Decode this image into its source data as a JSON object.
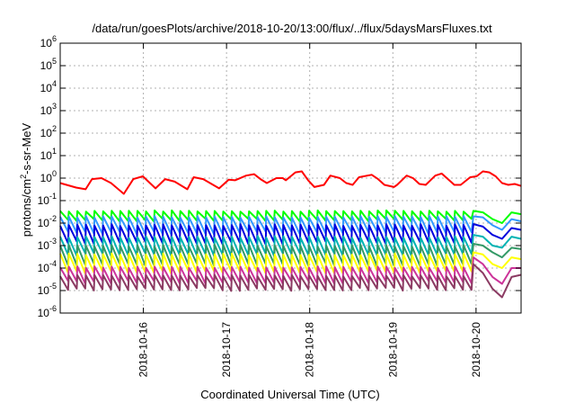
{
  "chart_data": {
    "type": "line",
    "title": "/data/run/goesPlots/archive/2018-10-20/13:00/flux/../flux/5daysMarsFluxes.txt",
    "xlabel": "Coordinated Universal Time (UTC)",
    "ylabel": "protons/cm²-s-sr-MeV",
    "yscale": "log",
    "ylim": [
      1e-06,
      1000000.0
    ],
    "y_ticks": [
      {
        "base": "10",
        "exp": "-6"
      },
      {
        "base": "10",
        "exp": "-5"
      },
      {
        "base": "10",
        "exp": "-4"
      },
      {
        "base": "10",
        "exp": "-3"
      },
      {
        "base": "10",
        "exp": "-2"
      },
      {
        "base": "10",
        "exp": "-1"
      },
      {
        "base": "10",
        "exp": "0"
      },
      {
        "base": "10",
        "exp": "1"
      },
      {
        "base": "10",
        "exp": "2"
      },
      {
        "base": "10",
        "exp": "3"
      },
      {
        "base": "10",
        "exp": "4"
      },
      {
        "base": "10",
        "exp": "5"
      },
      {
        "base": "10",
        "exp": "6"
      }
    ],
    "xlim": [
      "2018-10-15 00:00",
      "2018-10-20 13:00"
    ],
    "x_ticks": [
      "2018-10-16",
      "2018-10-17",
      "2018-10-18",
      "2018-10-19",
      "2018-10-20"
    ],
    "grid": true,
    "legend": "none",
    "series": [
      {
        "color": "#ff0000",
        "base": 0.7,
        "amp": 0.35,
        "spikes": false,
        "anchors": [
          [
            0,
            0.6
          ],
          [
            0.5,
            0.38
          ],
          [
            0.8,
            0.32
          ],
          [
            1.0,
            0.9
          ],
          [
            1.3,
            1.0
          ],
          [
            1.6,
            0.6
          ],
          [
            2.0,
            0.2
          ],
          [
            2.3,
            0.9
          ],
          [
            2.6,
            1.2
          ],
          [
            3.0,
            0.35
          ],
          [
            3.3,
            0.9
          ],
          [
            3.6,
            0.7
          ],
          [
            4.0,
            0.32
          ],
          [
            4.2,
            1.1
          ],
          [
            4.5,
            0.9
          ],
          [
            5.0,
            0.35
          ],
          [
            5.3,
            0.85
          ],
          [
            5.5,
            0.8
          ],
          [
            5.85,
            1.3
          ],
          [
            6.1,
            1.5
          ],
          [
            6.3,
            0.9
          ],
          [
            6.5,
            0.6
          ],
          [
            6.8,
            1.0
          ],
          [
            7.0,
            1.0
          ],
          [
            7.1,
            0.8
          ],
          [
            7.4,
            1.8
          ],
          [
            7.6,
            2.0
          ],
          [
            7.8,
            0.8
          ],
          [
            8.0,
            0.4
          ],
          [
            8.3,
            0.5
          ],
          [
            8.5,
            1.3
          ],
          [
            8.8,
            1.0
          ],
          [
            9.0,
            0.6
          ],
          [
            9.2,
            0.5
          ],
          [
            9.4,
            1.1
          ],
          [
            9.8,
            1.4
          ],
          [
            10.0,
            0.9
          ],
          [
            10.2,
            0.5
          ],
          [
            10.5,
            0.4
          ],
          [
            10.6,
            0.5
          ],
          [
            10.9,
            1.3
          ],
          [
            11.1,
            1.0
          ],
          [
            11.3,
            0.55
          ],
          [
            11.5,
            0.5
          ],
          [
            11.8,
            1.3
          ],
          [
            12.0,
            1.6
          ],
          [
            12.2,
            0.9
          ],
          [
            12.4,
            0.5
          ],
          [
            12.6,
            0.5
          ],
          [
            12.9,
            1.1
          ],
          [
            13.1,
            1.2
          ],
          [
            13.3,
            2.0
          ],
          [
            13.5,
            1.8
          ],
          [
            13.7,
            1.2
          ],
          [
            13.9,
            0.6
          ],
          [
            14.1,
            0.5
          ],
          [
            14.3,
            0.55
          ],
          [
            14.5,
            0.45
          ]
        ]
      },
      {
        "color": "#00ff00",
        "base": 0.025,
        "amp": 0.012,
        "spikes": true,
        "end": [
          0.035,
          0.03,
          0.015,
          0.01,
          0.03,
          0.025
        ]
      },
      {
        "color": "#3399ff",
        "base": 0.012,
        "amp": 0.009,
        "spikes": true,
        "end": [
          0.02,
          0.018,
          0.008,
          0.005,
          0.015,
          0.012
        ]
      },
      {
        "color": "#0000dd",
        "base": 0.005,
        "amp": 0.004,
        "spikes": true,
        "end": [
          0.009,
          0.007,
          0.003,
          0.002,
          0.006,
          0.005
        ]
      },
      {
        "color": "#00b3b3",
        "base": 0.0015,
        "amp": 0.0012,
        "spikes": true,
        "end": [
          0.003,
          0.0025,
          0.001,
          0.0008,
          0.0025,
          0.002
        ]
      },
      {
        "color": "#339966",
        "base": 0.0006,
        "amp": 0.0005,
        "spikes": true,
        "end": [
          0.0012,
          0.001,
          0.0005,
          0.0003,
          0.0008,
          0.0007
        ]
      },
      {
        "color": "#ffff00",
        "base": 0.00025,
        "amp": 0.0002,
        "spikes": true,
        "end": [
          0.0005,
          0.0004,
          0.00015,
          0.0001,
          0.0003,
          0.00025
        ]
      },
      {
        "color": "#cc3399",
        "base": 7e-05,
        "amp": 5e-05,
        "spikes": true,
        "end": [
          0.0003,
          0.00015,
          4e-05,
          2e-05,
          0.0001,
          0.0001
        ]
      },
      {
        "color": "#8b3a62",
        "base": 3e-05,
        "amp": 2e-05,
        "spikes": true,
        "end": [
          0.00015,
          6e-05,
          1.2e-05,
          5e-06,
          4e-05,
          5e-05
        ]
      }
    ]
  }
}
